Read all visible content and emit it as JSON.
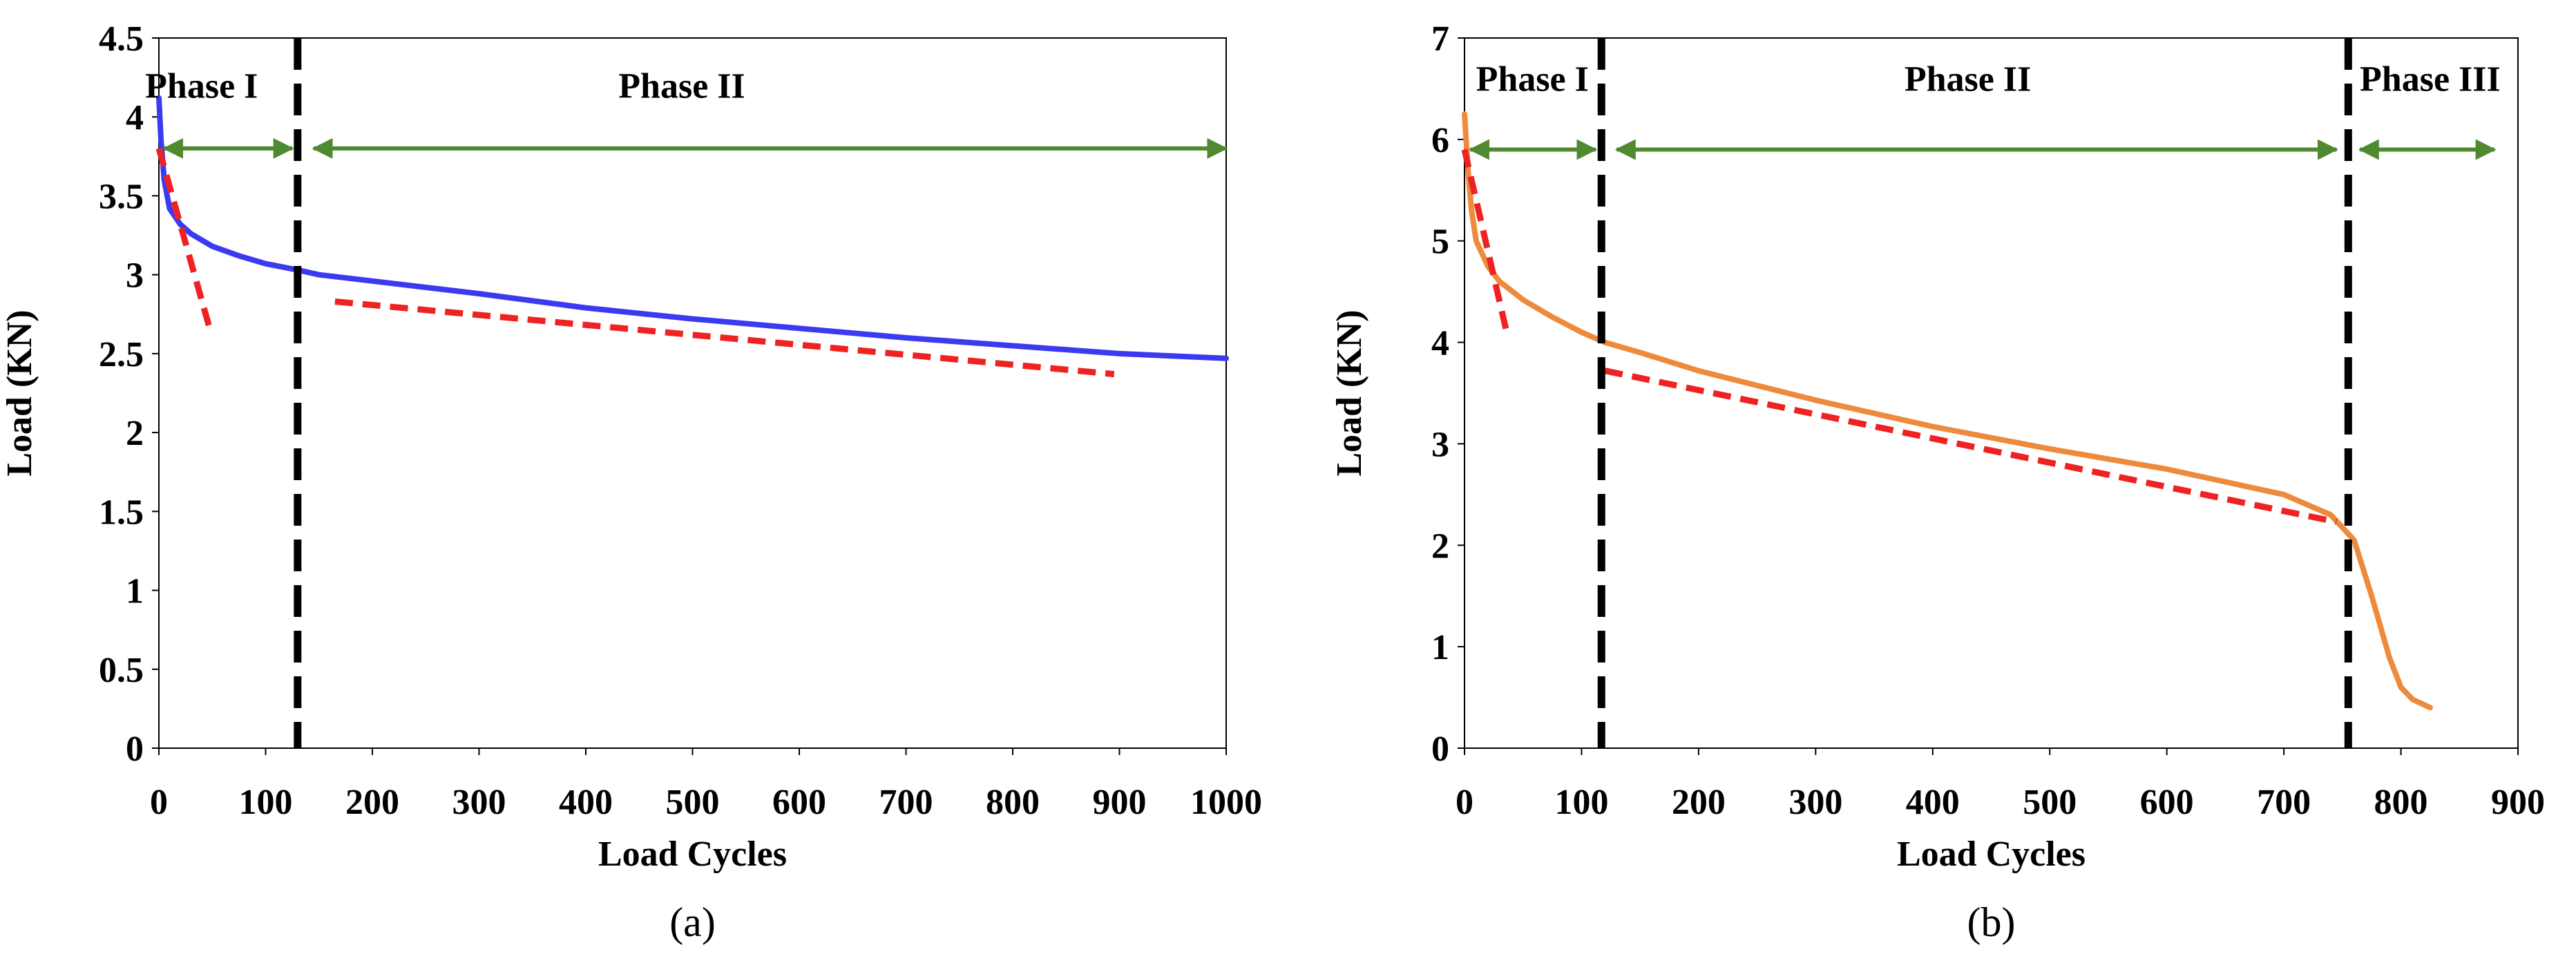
{
  "chart_data": [
    {
      "id": "a",
      "type": "line",
      "caption": "(a)",
      "xlabel": "Load Cycles",
      "ylabel": "Load (KN)",
      "xlim": [
        0,
        1000
      ],
      "ylim": [
        0,
        4.5
      ],
      "xticks": [
        "0",
        "100",
        "200",
        "300",
        "400",
        "500",
        "600",
        "700",
        "800",
        "900",
        "1000"
      ],
      "yticks": [
        "0",
        "0.5",
        "1",
        "1.5",
        "2",
        "2.5",
        "3",
        "3.5",
        "4",
        "4.5"
      ],
      "series": [
        {
          "name": "Load",
          "color": "#3a3af0",
          "x": [
            0,
            2,
            5,
            10,
            20,
            30,
            50,
            75,
            100,
            130,
            150,
            200,
            300,
            400,
            500,
            600,
            700,
            800,
            900,
            1000
          ],
          "y": [
            4.12,
            3.85,
            3.6,
            3.42,
            3.32,
            3.26,
            3.18,
            3.12,
            3.07,
            3.03,
            3.0,
            2.96,
            2.88,
            2.79,
            2.72,
            2.66,
            2.6,
            2.55,
            2.5,
            2.47
          ]
        }
      ],
      "trend_lines": [
        {
          "color": "#ee2222",
          "x": [
            0,
            48
          ],
          "y": [
            3.8,
            2.65
          ]
        },
        {
          "color": "#ee2222",
          "x": [
            165,
            895
          ],
          "y": [
            2.83,
            2.37
          ]
        }
      ],
      "vlines": [
        {
          "color": "#000000",
          "x": 130
        }
      ],
      "phases": [
        {
          "label": "Phase I",
          "label_x": 40,
          "label_y": 4.2,
          "arrow_from": 5,
          "arrow_to": 125,
          "arrow_y": 3.8
        },
        {
          "label": "Phase II",
          "label_x": 490,
          "label_y": 4.2,
          "arrow_from": 145,
          "arrow_to": 1000,
          "arrow_y": 3.8
        }
      ],
      "arrow_color": "#4f8a30"
    },
    {
      "id": "b",
      "type": "line",
      "caption": "(b)",
      "xlabel": "Load Cycles",
      "ylabel": "Load (KN)",
      "xlim": [
        0,
        900
      ],
      "ylim": [
        0,
        7
      ],
      "xticks": [
        "0",
        "100",
        "200",
        "300",
        "400",
        "500",
        "600",
        "700",
        "800",
        "900"
      ],
      "yticks": [
        "0",
        "1",
        "2",
        "3",
        "4",
        "5",
        "6",
        "7"
      ],
      "series": [
        {
          "name": "Load",
          "color": "#ee8a3c",
          "x": [
            0,
            3,
            6,
            10,
            20,
            30,
            50,
            75,
            100,
            120,
            150,
            200,
            300,
            400,
            500,
            600,
            700,
            740,
            760,
            775,
            790,
            800,
            810,
            825
          ],
          "y": [
            6.25,
            5.7,
            5.3,
            5.0,
            4.75,
            4.6,
            4.42,
            4.25,
            4.1,
            4.0,
            3.9,
            3.72,
            3.43,
            3.17,
            2.95,
            2.75,
            2.5,
            2.3,
            2.05,
            1.5,
            0.9,
            0.6,
            0.48,
            0.4
          ]
        }
      ],
      "trend_lines": [
        {
          "color": "#ee2222",
          "x": [
            0,
            36
          ],
          "y": [
            5.9,
            4.1
          ]
        },
        {
          "color": "#ee2222",
          "x": [
            120,
            745
          ],
          "y": [
            3.72,
            2.23
          ]
        }
      ],
      "vlines": [
        {
          "color": "#000000",
          "x": 117
        },
        {
          "color": "#000000",
          "x": 755
        }
      ],
      "phases": [
        {
          "label": "Phase I",
          "label_x": 58,
          "label_y": 6.6,
          "arrow_from": 5,
          "arrow_to": 112,
          "arrow_y": 5.9
        },
        {
          "label": "Phase II",
          "label_x": 430,
          "label_y": 6.6,
          "arrow_from": 130,
          "arrow_to": 745,
          "arrow_y": 5.9
        },
        {
          "label": "Phase III",
          "label_x": 825,
          "label_y": 6.6,
          "arrow_from": 765,
          "arrow_to": 880,
          "arrow_y": 5.9
        }
      ],
      "arrow_color": "#4f8a30"
    }
  ]
}
